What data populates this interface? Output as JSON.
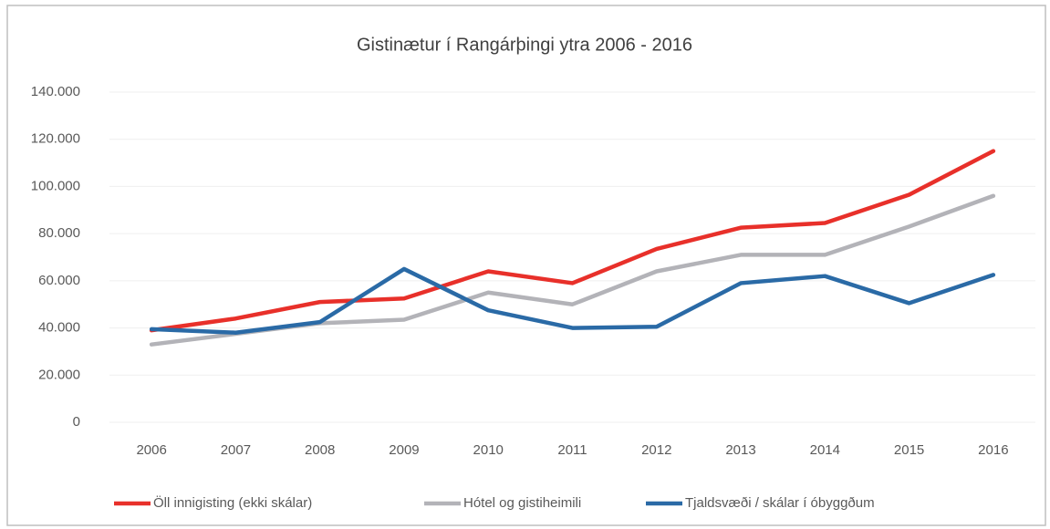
{
  "chart_data": {
    "type": "line",
    "title": "Gistinætur í Rangárþingi ytra 2006 - 2016",
    "categories": [
      "2006",
      "2007",
      "2008",
      "2009",
      "2010",
      "2011",
      "2012",
      "2013",
      "2014",
      "2015",
      "2016"
    ],
    "series": [
      {
        "name": "Öll innigisting (ekki skálar)",
        "color": "#e8302a",
        "values": [
          39000,
          44000,
          51000,
          52500,
          64000,
          59000,
          73500,
          82500,
          84500,
          96500,
          115000
        ]
      },
      {
        "name": "Hótel og gistiheimili",
        "color": "#b3b3b8",
        "values": [
          33000,
          37500,
          42000,
          43500,
          55000,
          50000,
          64000,
          71000,
          71000,
          83000,
          96000
        ]
      },
      {
        "name": "Tjaldsvæði / skálar í óbyggðum",
        "color": "#2a6aa6",
        "values": [
          39500,
          38000,
          42500,
          65000,
          47500,
          40000,
          40500,
          59000,
          62000,
          50500,
          62500
        ]
      }
    ],
    "ylim": [
      0,
      140000
    ],
    "yticks": [
      0,
      {
        "value": 20000,
        "label": "20.000"
      },
      {
        "value": 40000,
        "label": "40.000"
      },
      {
        "value": 60000,
        "label": "60.000"
      },
      {
        "value": 80000,
        "label": "80.000"
      },
      {
        "value": 100000,
        "label": "100.000"
      },
      {
        "value": 120000,
        "label": "120.000"
      },
      {
        "value": 140000,
        "label": "140.000"
      }
    ],
    "grid": true,
    "legend": "bottom"
  }
}
